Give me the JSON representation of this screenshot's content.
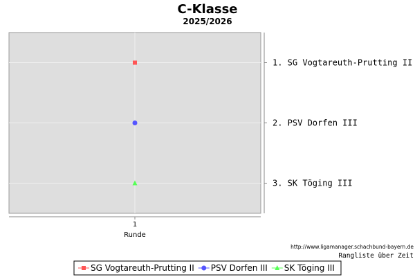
{
  "chart_data": {
    "type": "scatter",
    "title": "C-Klasse",
    "subtitle": "2025/2026",
    "xlabel": "Runde",
    "ylabel": "",
    "x_ticks": [
      "1"
    ],
    "xlim": [
      0,
      2
    ],
    "ylim": [
      0.5,
      3.5
    ],
    "y_inverted": true,
    "grid": true,
    "right_axis_labels": [
      "1.  SG Vogtareuth-Prutting II",
      "2.  PSV Dorfen III",
      "3.  SK Töging III"
    ],
    "series": [
      {
        "name": "SG Vogtareuth-Prutting II",
        "color": "#ff5555",
        "marker": "square",
        "points": [
          {
            "x": 1,
            "y": 1
          }
        ]
      },
      {
        "name": "PSV Dorfen III",
        "color": "#5555ff",
        "marker": "circle",
        "points": [
          {
            "x": 1,
            "y": 2
          }
        ]
      },
      {
        "name": "SK Töging III",
        "color": "#55ff55",
        "marker": "triangle",
        "points": [
          {
            "x": 1,
            "y": 3
          }
        ]
      }
    ],
    "legend_position": "bottom-center",
    "source_url": "http://www.ligamanager.schachbund-bayern.de",
    "caption": "Rangliste über Zeit",
    "plot_background": "#dedede"
  }
}
